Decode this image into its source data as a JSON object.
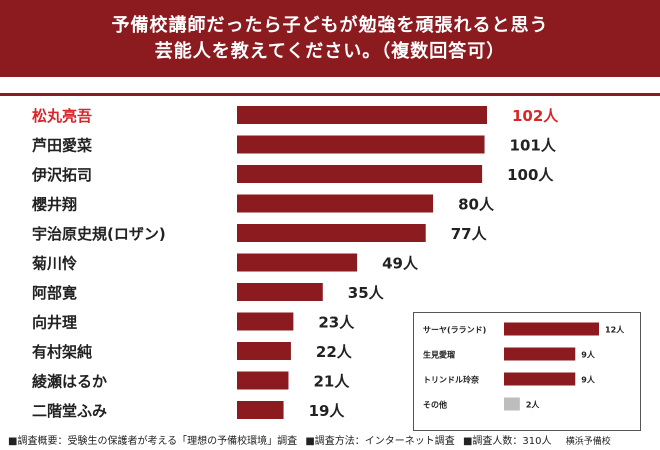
{
  "header": {
    "line1": "予備校講師だったら子どもが勉強を頑張れると思う",
    "line2": "芸能人を教えてください。（複数回答可）"
  },
  "colors": {
    "bar": "#8c1b20",
    "highlight_text": "#d8262b",
    "other_bar": "#bdbdbd",
    "text": "#222222"
  },
  "chart_data": [
    {
      "type": "bar",
      "orientation": "horizontal",
      "categories": [
        "松丸亮吾",
        "芦田愛菜",
        "伊沢拓司",
        "櫻井翔",
        "宇治原史規(ロザン)",
        "菊川怜",
        "阿部寛",
        "向井理",
        "有村架純",
        "綾瀬はるか",
        "二階堂ふみ"
      ],
      "values": [
        102,
        101,
        100,
        80,
        77,
        49,
        35,
        23,
        22,
        21,
        19
      ],
      "value_labels": [
        "102人",
        "101人",
        "100人",
        "80人",
        "77人",
        "49人",
        "35人",
        "23人",
        "22人",
        "21人",
        "19人"
      ],
      "highlight_index": 0,
      "xlim": [
        0,
        102
      ]
    },
    {
      "type": "bar",
      "orientation": "horizontal",
      "categories": [
        "サーヤ(ラランド)",
        "生見愛瑠",
        "トリンドル玲奈",
        "その他"
      ],
      "values": [
        12,
        9,
        9,
        2
      ],
      "value_labels": [
        "12人",
        "9人",
        "9人",
        "2人"
      ],
      "xlim": [
        0,
        12
      ]
    }
  ],
  "footer": {
    "overview": "■調査概要：受験生の保護者が考える「理想の予備校環境」調査",
    "method": "■調査方法：インターネット調査",
    "count": "■調査人数：310人",
    "brand": "横浜予備校"
  }
}
